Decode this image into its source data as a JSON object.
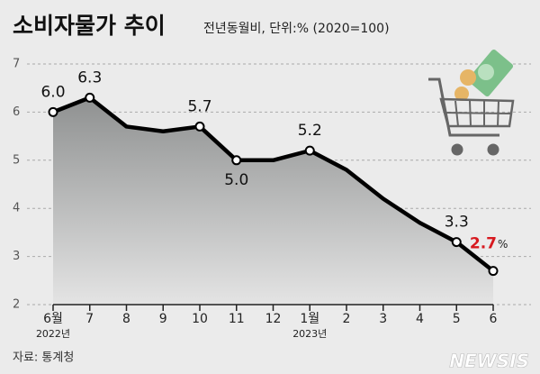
{
  "chart_data": {
    "type": "area-line",
    "title": "소비자물가 추이",
    "subtitle": "전년동월비, 단위:% (2020=100)",
    "categories": [
      "6월",
      "7",
      "8",
      "9",
      "10",
      "11",
      "12",
      "1월",
      "2",
      "3",
      "4",
      "5",
      "6"
    ],
    "category_sublabels": [
      "2022년",
      null,
      null,
      null,
      null,
      null,
      null,
      "2023년",
      null,
      null,
      null,
      null,
      null
    ],
    "values": [
      6.0,
      6.3,
      5.7,
      5.6,
      5.7,
      5.0,
      5.0,
      5.2,
      4.8,
      4.2,
      3.7,
      3.3,
      2.7
    ],
    "value_labels": [
      "6.0",
      "6.3",
      null,
      null,
      "5.7",
      "5.0",
      null,
      "5.2",
      null,
      null,
      null,
      "3.3",
      "2.7"
    ],
    "unit_label": "%",
    "ylim": [
      2,
      7
    ],
    "yticks": [
      2,
      3,
      4,
      5,
      6,
      7
    ],
    "grid": true,
    "color": "#000000",
    "highlight_color": "#d7191f",
    "source": "자료: 통계청",
    "watermark": "NEWSIS"
  }
}
